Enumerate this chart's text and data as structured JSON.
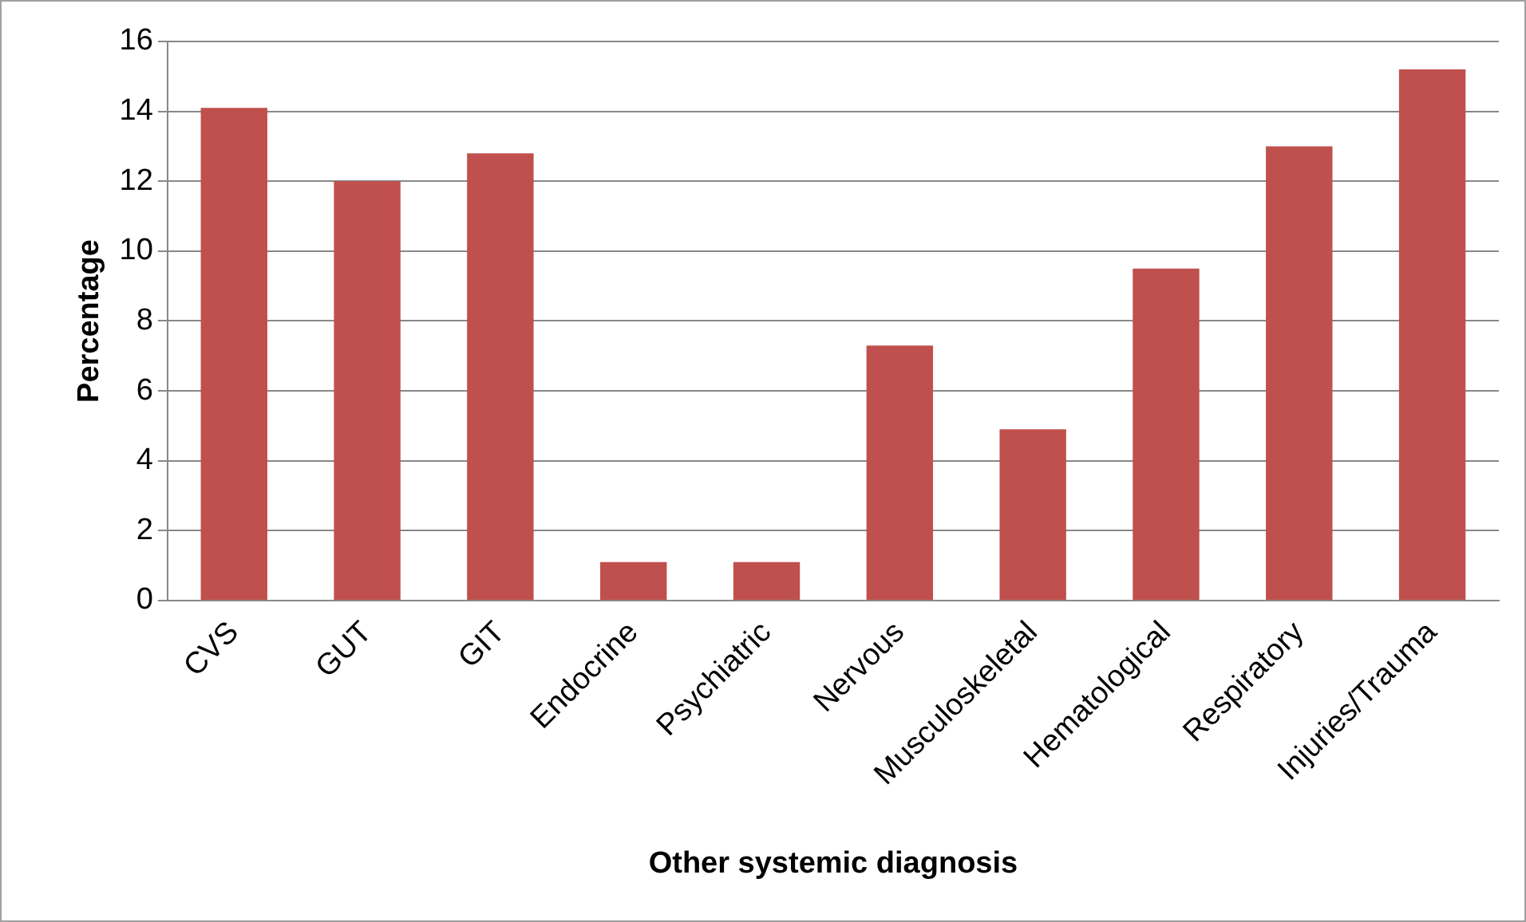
{
  "chart_data": {
    "type": "bar",
    "xlabel": "Other systemic diagnosis",
    "ylabel": "Percentage",
    "categories": [
      "CVS",
      "GUT",
      "GIT",
      "Endocrine",
      "Psychiatric",
      "Nervous",
      "Musculoskeletal",
      "Hematological",
      "Respiratory",
      "Injuries/Trauma"
    ],
    "values": [
      14.1,
      12.0,
      12.8,
      1.1,
      1.1,
      7.3,
      4.9,
      9.5,
      13.0,
      15.2
    ],
    "color": "#c0504d",
    "ylim": [
      0,
      16
    ],
    "yticks": [
      0,
      2,
      4,
      6,
      8,
      10,
      12,
      14,
      16
    ],
    "grid": "y"
  }
}
